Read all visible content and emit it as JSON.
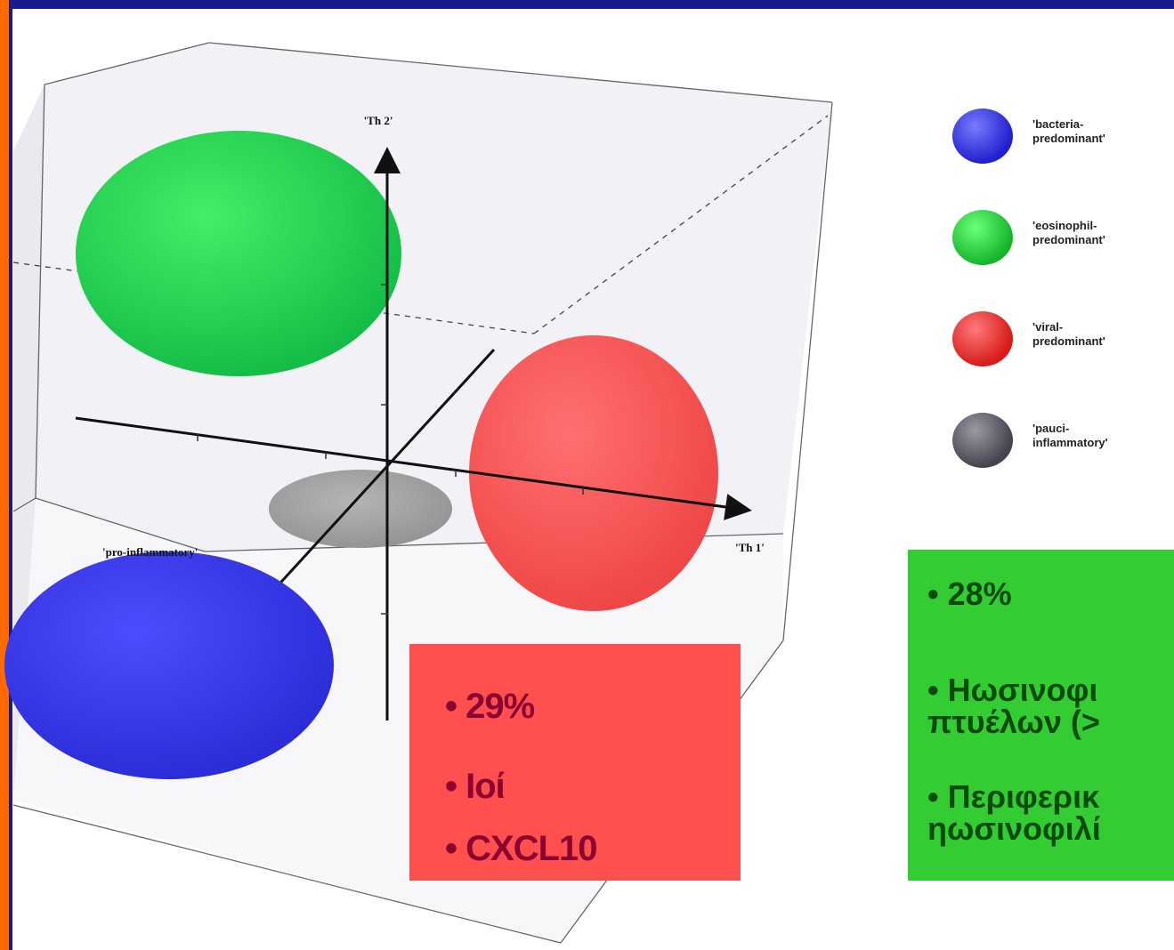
{
  "axes": {
    "th2": "'Th 2'",
    "th1": "'Th 1'",
    "pro": "'pro-inflammatory'"
  },
  "legend": [
    {
      "label": "'bacteria-\npredominant'",
      "color": "#2222dd",
      "icon": "blue-sphere-icon"
    },
    {
      "label": "'eosinophil-\npredominant'",
      "color": "#22cc33",
      "icon": "green-sphere-icon"
    },
    {
      "label": "'viral-\npredominant'",
      "color": "#ee2222",
      "icon": "red-sphere-icon"
    },
    {
      "label": "'pauci-\ninflammatory'",
      "color": "#555560",
      "icon": "gray-sphere-icon"
    }
  ],
  "red_box": {
    "line1": "• 29%",
    "line2": "• Ιοί",
    "line3": "• CXCL10"
  },
  "green_box": {
    "line1": "• 28%",
    "line2": "• Ηωσινοφι",
    "line3": "πτυέλων (>",
    "line4": "• Περιφερικ",
    "line5": "ηωσινοφιλί"
  },
  "colors": {
    "top_bar": "#1a1a8c",
    "left_bar": "#ff6a00",
    "red_box": "#ff4f4f",
    "green_box": "#33cc33"
  }
}
